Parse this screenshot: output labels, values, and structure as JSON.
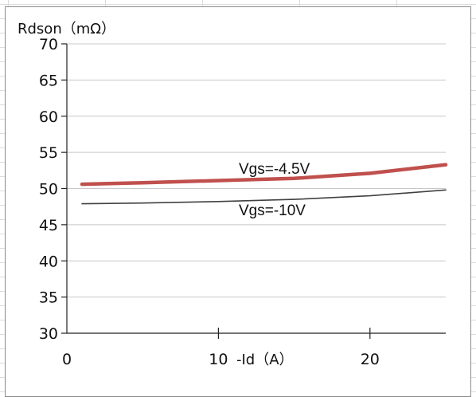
{
  "chart_data": {
    "type": "line",
    "title": "",
    "ylabel": "Rdson（mΩ）",
    "xlabel": "-Id（A）",
    "xlim": [
      0,
      25
    ],
    "ylim": [
      30,
      70
    ],
    "yticks": [
      30,
      35,
      40,
      45,
      50,
      55,
      60,
      65,
      70
    ],
    "xticks": [
      0,
      10,
      20
    ],
    "grid": "horizontal",
    "series": [
      {
        "name": "Vgs=-4.5V",
        "color": "#c0504d",
        "x": [
          1,
          5,
          10,
          15,
          20,
          25
        ],
        "y": [
          50.6,
          50.8,
          51.1,
          51.4,
          52.1,
          53.3
        ]
      },
      {
        "name": "Vgs=-10V",
        "color": "#404040",
        "x": [
          1,
          5,
          10,
          15,
          20,
          25
        ],
        "y": [
          47.9,
          48.0,
          48.2,
          48.5,
          49.0,
          49.8
        ]
      }
    ]
  }
}
